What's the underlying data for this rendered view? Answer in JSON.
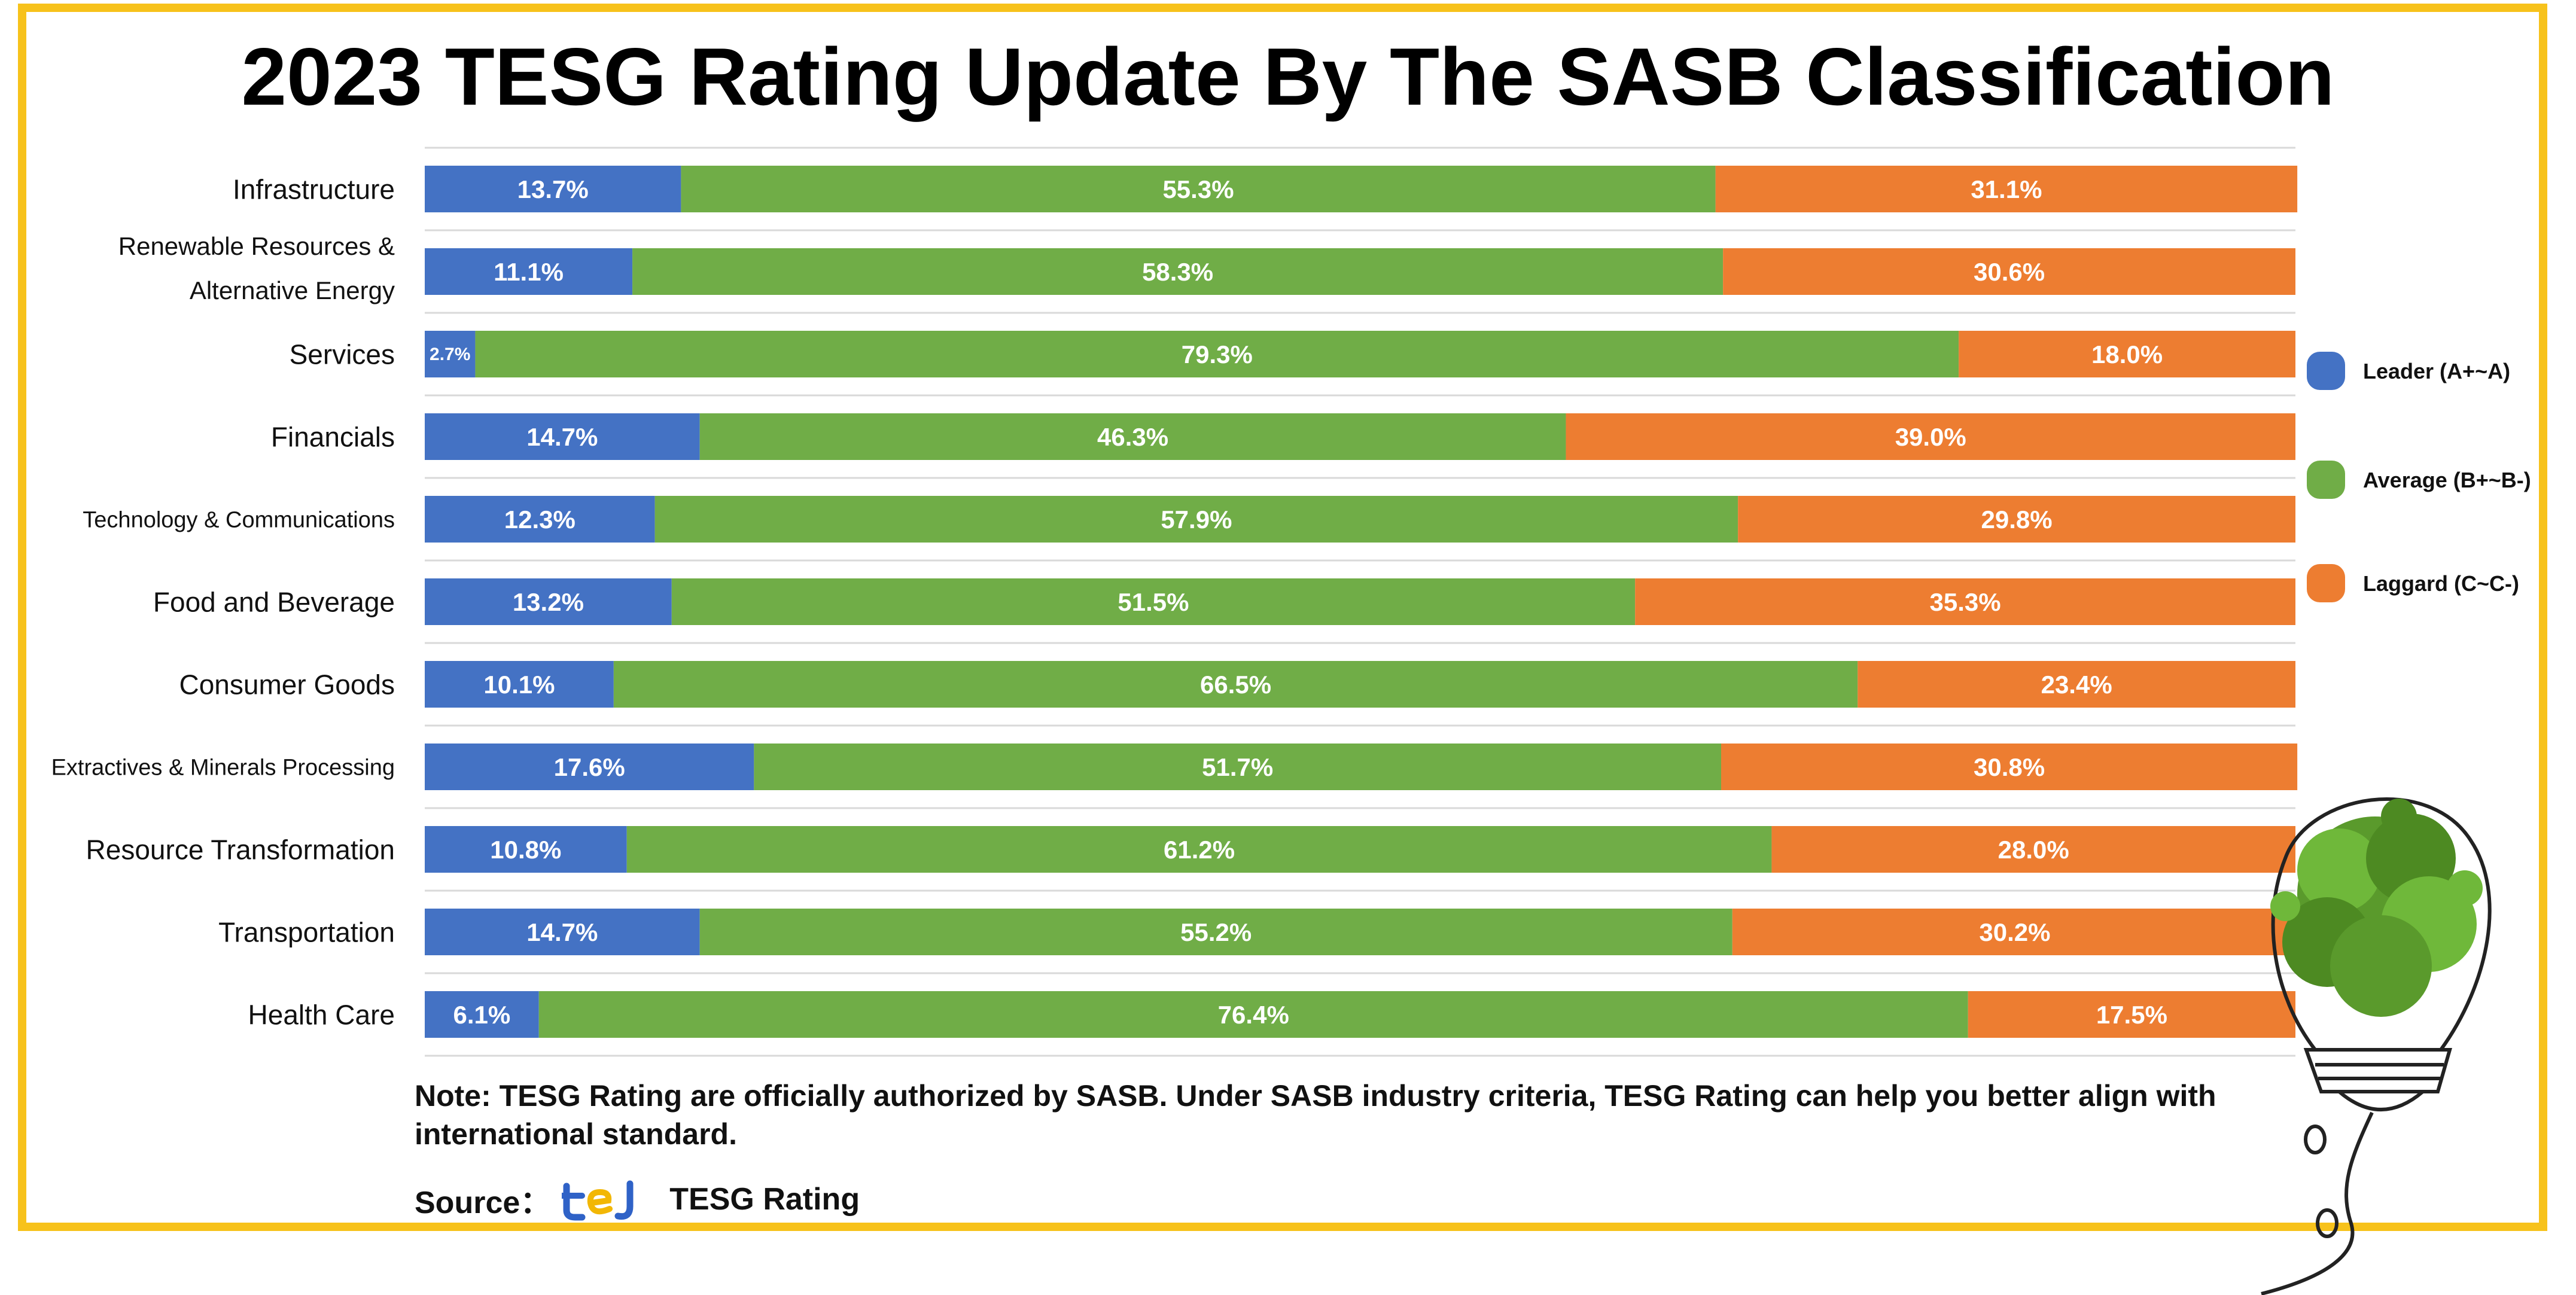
{
  "chart_data": {
    "type": "bar",
    "orientation": "horizontal",
    "stacked": true,
    "title": "2023 TESG Rating Update By The SASB Classification",
    "categories": [
      [
        "Infrastructure"
      ],
      [
        "Renewable Resources &",
        "Alternative Energy"
      ],
      [
        "Services"
      ],
      [
        "Financials"
      ],
      [
        "Technology & Communications"
      ],
      [
        "Food and Beverage"
      ],
      [
        "Consumer Goods"
      ],
      [
        "Extractives & Minerals Processing"
      ],
      [
        "Resource Transformation"
      ],
      [
        "Transportation"
      ],
      [
        "Health Care"
      ]
    ],
    "series": [
      {
        "name": "Leader (A+~A)",
        "color": "#4472c4",
        "values": [
          13.7,
          11.1,
          2.7,
          14.7,
          12.3,
          13.2,
          10.1,
          17.6,
          10.8,
          14.7,
          6.1
        ]
      },
      {
        "name": "Average (B+~B-)",
        "color": "#70ad47",
        "values": [
          55.3,
          58.3,
          79.3,
          46.3,
          57.9,
          51.5,
          66.5,
          51.7,
          61.2,
          55.2,
          76.4
        ]
      },
      {
        "name": "Laggard (C~C-)",
        "color": "#ed7d31",
        "values": [
          31.1,
          30.6,
          18.0,
          39.0,
          29.8,
          35.3,
          23.4,
          30.8,
          28.0,
          30.2,
          17.5
        ]
      }
    ],
    "value_suffix": "%",
    "xlim": [
      0,
      100
    ],
    "legend_position": "right"
  },
  "note": "Note: TESG Rating are officially authorized by SASB. Under SASB industry criteria, TESG Rating can help you better align with international standard.",
  "source": {
    "label": "Source：",
    "name": "TESG Rating",
    "logo_text": "tej"
  }
}
